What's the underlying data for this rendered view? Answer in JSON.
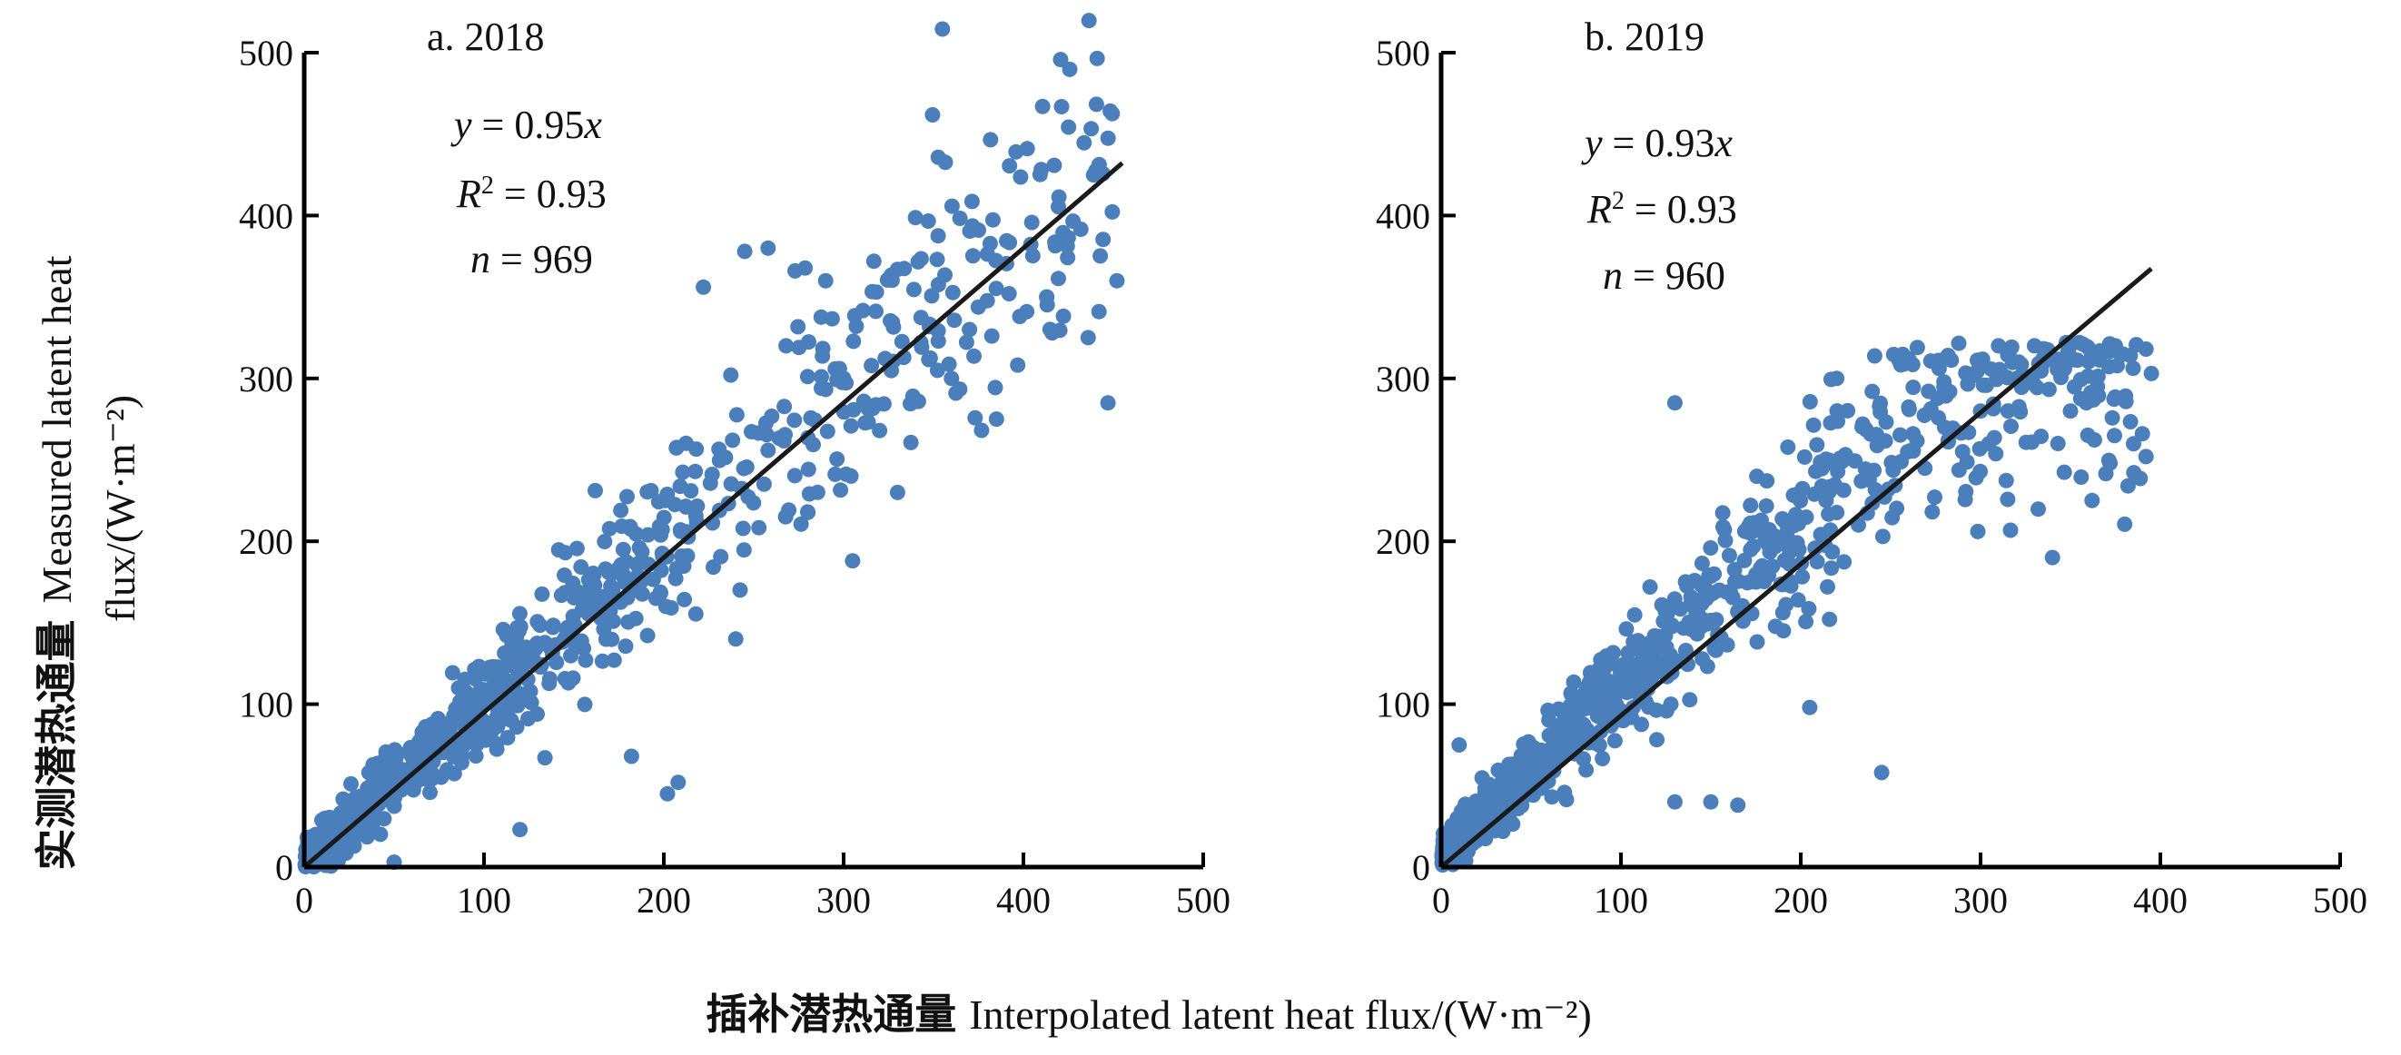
{
  "figure": {
    "y_label_cn": "实测潜热通量",
    "y_label_en_line1": "Measured latent heat",
    "y_label_en_line2": "flux/(W·m⁻²)",
    "x_label_cn": "插补潜热通量",
    "x_label_en": "Interpolated latent heat flux/(W·m⁻²)"
  },
  "colors": {
    "points": "#4a7fbc",
    "fit_line": "#1a1a1a",
    "axes": "#000000"
  },
  "chart_data": [
    {
      "type": "scatter",
      "title": "a. 2018",
      "equation_lhs": "y",
      "equation_rhs": " = 0.95",
      "equation_var": "x",
      "r2_label": "R",
      "r2_sup": "2",
      "r2_value": " = 0.93",
      "n_label": "n",
      "n_value": " = 969",
      "xlim": [
        0,
        500
      ],
      "ylim": [
        0,
        500
      ],
      "xticks": [
        "0",
        "100",
        "200",
        "300",
        "400",
        "500"
      ],
      "yticks": [
        "0",
        "100",
        "200",
        "300",
        "400",
        "500"
      ],
      "fit": {
        "slope": 0.95,
        "x_range": [
          0,
          455
        ]
      },
      "n_points": 969,
      "seed": 2018,
      "outliers": [
        [
          245,
          378
        ],
        [
          258,
          380
        ],
        [
          273,
          366
        ],
        [
          290,
          360
        ],
        [
          222,
          356
        ],
        [
          375,
          391
        ],
        [
          352,
          373
        ],
        [
          392,
          352
        ],
        [
          413,
          350
        ],
        [
          398,
          338
        ],
        [
          416,
          328
        ],
        [
          442,
          341
        ],
        [
          452,
          360
        ],
        [
          436,
          325
        ],
        [
          447,
          285
        ],
        [
          385,
          275
        ],
        [
          305,
          188
        ],
        [
          208,
          52
        ],
        [
          202,
          45
        ],
        [
          182,
          68
        ],
        [
          120,
          23
        ],
        [
          50,
          3
        ],
        [
          300,
          300
        ],
        [
          320,
          268
        ],
        [
          268,
          320
        ],
        [
          330,
          230
        ],
        [
          370,
          330
        ],
        [
          360,
          300
        ],
        [
          280,
          218
        ],
        [
          240,
          140
        ]
      ]
    },
    {
      "type": "scatter",
      "title": "b. 2019",
      "equation_lhs": "y",
      "equation_rhs": " = 0.93",
      "equation_var": "x",
      "r2_label": "R",
      "r2_sup": "2",
      "r2_value": " = 0.93",
      "n_label": "n",
      "n_value": " = 960",
      "xlim": [
        0,
        500
      ],
      "ylim": [
        0,
        500
      ],
      "xticks": [
        "0",
        "100",
        "200",
        "300",
        "400",
        "500"
      ],
      "yticks": [
        "0",
        "100",
        "200",
        "300",
        "400",
        "500"
      ],
      "fit": {
        "slope": 0.93,
        "x_range": [
          0,
          395
        ]
      },
      "n_points": 960,
      "seed": 2019,
      "outliers": [
        [
          130,
          285
        ],
        [
          220,
          300
        ],
        [
          260,
          312
        ],
        [
          310,
          320
        ],
        [
          330,
          320
        ],
        [
          355,
          322
        ],
        [
          375,
          320
        ],
        [
          392,
          318
        ],
        [
          395,
          303
        ],
        [
          390,
          266
        ],
        [
          392,
          252
        ],
        [
          382,
          234
        ],
        [
          372,
          248
        ],
        [
          362,
          225
        ],
        [
          340,
          190
        ],
        [
          245,
          58
        ],
        [
          205,
          98
        ],
        [
          150,
          40
        ],
        [
          165,
          38
        ],
        [
          130,
          40
        ],
        [
          290,
          255
        ],
        [
          300,
          280
        ],
        [
          320,
          300
        ],
        [
          280,
          270
        ],
        [
          350,
          280
        ],
        [
          365,
          295
        ],
        [
          10,
          75
        ]
      ]
    }
  ]
}
